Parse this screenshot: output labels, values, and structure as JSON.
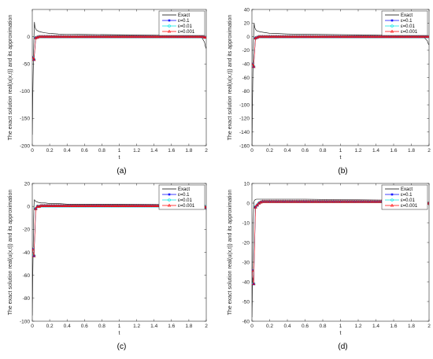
{
  "chart_data": [
    {
      "type": "line",
      "caption": "(a)",
      "xlabel": "t",
      "ylabel": "The exact solution real(u(x,t)) and its approximation",
      "xlim": [
        0,
        2
      ],
      "ylim": [
        -200,
        50
      ],
      "xticks": [
        0,
        0.2,
        0.4,
        0.6,
        0.8,
        1,
        1.2,
        1.4,
        1.6,
        1.8,
        2
      ],
      "xtick_labels": [
        "0",
        "0.2",
        "0.4",
        "0.6",
        "0.8",
        "1",
        "1.2",
        "1.4",
        "1.6",
        "1.8",
        "2"
      ],
      "yticks": [
        -200,
        -150,
        -100,
        -50,
        0
      ],
      "ytick_labels": [
        "-200",
        "-150",
        "-100",
        "-50",
        "0"
      ],
      "legend_position": "top-right",
      "exact_curve": {
        "label": "Exact",
        "color": "#000000",
        "x": [
          0,
          0.005,
          0.01,
          0.015,
          0.02,
          0.025,
          0.03,
          0.04,
          0.05,
          0.07,
          0.1,
          0.15,
          0.2,
          0.3,
          0.4,
          0.6,
          1.0,
          1.4,
          1.6,
          1.8,
          1.9,
          1.95,
          1.98,
          1.99,
          2.0
        ],
        "y": [
          -180,
          -120,
          -70,
          -25,
          5,
          27,
          18,
          14,
          12,
          10,
          8.5,
          7,
          6,
          5,
          4.5,
          4,
          3.5,
          3,
          2.5,
          2,
          1,
          -2,
          -10,
          -18,
          -22
        ]
      },
      "approx_series": [
        {
          "label": "ε=0.1",
          "color": "#0000ff",
          "marker": "star"
        },
        {
          "label": "ε=0.01",
          "color": "#00e5e5",
          "marker": "circle"
        },
        {
          "label": "ε=0.001",
          "color": "#ff0000",
          "marker": "triangle"
        }
      ],
      "approx_x": [
        0,
        0.02,
        0.04,
        0.06,
        0.08,
        0.1,
        0.12,
        0.14,
        0.16,
        0.18,
        0.2,
        0.22,
        0.24,
        0.26,
        0.28,
        0.3,
        0.32,
        0.34,
        0.36,
        0.38,
        0.4,
        0.42,
        0.44,
        0.46,
        0.48,
        0.5,
        0.52,
        0.54,
        0.56,
        0.58,
        0.6,
        0.62,
        0.64,
        0.66,
        0.68,
        0.7,
        0.72,
        0.74,
        0.76,
        0.78,
        0.8,
        0.82,
        0.84,
        0.86,
        0.88,
        0.9,
        0.92,
        0.94,
        0.96,
        0.98,
        1.0,
        1.02,
        1.04,
        1.06,
        1.08,
        1.1,
        1.12,
        1.14,
        1.16,
        1.18,
        1.2,
        1.22,
        1.24,
        1.26,
        1.28,
        1.3,
        1.32,
        1.34,
        1.36,
        1.38,
        1.4,
        1.42,
        1.44,
        1.46,
        1.48,
        1.5,
        1.52,
        1.54,
        1.56,
        1.58,
        1.6,
        1.62,
        1.64,
        1.66,
        1.68,
        1.7,
        1.72,
        1.74,
        1.76,
        1.78,
        1.8,
        1.82,
        1.84,
        1.86,
        1.88,
        1.9,
        1.92,
        1.94,
        1.96,
        1.98,
        2.0
      ],
      "approx_y": [
        -38,
        -42,
        -2,
        -1,
        0,
        0,
        0,
        0,
        0,
        0,
        0,
        0,
        0,
        0,
        0,
        0,
        0,
        0,
        0,
        0,
        0,
        0,
        0,
        0,
        0,
        0,
        0,
        0,
        0,
        0,
        0,
        0,
        0,
        0,
        0,
        0,
        0,
        0,
        0,
        0,
        0,
        0,
        0,
        0,
        0,
        0,
        0,
        0,
        0,
        0,
        0,
        0,
        0,
        0,
        0,
        0,
        0,
        0,
        0,
        0,
        0,
        0,
        0,
        0,
        0,
        0,
        0,
        0,
        0,
        0,
        0,
        0,
        0,
        0,
        0,
        0,
        0,
        0,
        0,
        0,
        0,
        0,
        0,
        0,
        0,
        0,
        0,
        0,
        0,
        0,
        0,
        0,
        0,
        0,
        0,
        0,
        0,
        0,
        0,
        -1,
        -1
      ]
    },
    {
      "type": "line",
      "caption": "(b)",
      "xlabel": "t",
      "ylabel": "The exact solution real(u(x,t)) and its approximation",
      "xlim": [
        0,
        2
      ],
      "ylim": [
        -160,
        40
      ],
      "xticks": [
        0,
        0.2,
        0.4,
        0.6,
        0.8,
        1,
        1.2,
        1.4,
        1.6,
        1.8,
        2
      ],
      "xtick_labels": [
        "0",
        "0.2",
        "0.4",
        "0.6",
        "0.8",
        "1",
        "1.2",
        "1.4",
        "1.6",
        "1.8",
        "2"
      ],
      "yticks": [
        -160,
        -140,
        -120,
        -100,
        -80,
        -60,
        -40,
        -20,
        0,
        20,
        40
      ],
      "ytick_labels": [
        "-160",
        "-140",
        "-120",
        "-100",
        "-80",
        "-60",
        "-40",
        "-20",
        "0",
        "20",
        "40"
      ],
      "legend_position": "top-right",
      "exact_curve": {
        "label": "Exact",
        "color": "#000000",
        "x": [
          0,
          0.005,
          0.01,
          0.015,
          0.02,
          0.025,
          0.03,
          0.04,
          0.05,
          0.07,
          0.1,
          0.15,
          0.2,
          0.3,
          0.4,
          0.6,
          1.0,
          1.4,
          1.6,
          1.8,
          1.9,
          1.95,
          1.98,
          1.99,
          2.0
        ],
        "y": [
          -160,
          -110,
          -60,
          -20,
          5,
          20,
          14,
          11,
          9,
          8,
          7,
          6,
          5,
          4.5,
          4,
          3.5,
          3,
          2.5,
          2,
          1.5,
          0.5,
          -2,
          -6,
          -10,
          -12
        ]
      },
      "approx_series": [
        {
          "label": "ε=0.1",
          "color": "#0000ff",
          "marker": "star"
        },
        {
          "label": "ε=0.01",
          "color": "#00e5e5",
          "marker": "circle"
        },
        {
          "label": "ε=0.001",
          "color": "#ff0000",
          "marker": "triangle"
        }
      ],
      "approx_x": [
        0,
        0.02,
        0.04,
        0.06,
        0.08,
        0.1,
        0.12,
        0.14,
        0.16,
        0.18,
        0.2,
        0.22,
        0.24,
        0.26,
        0.28,
        0.3,
        0.32,
        0.34,
        0.36,
        0.38,
        0.4,
        0.42,
        0.44,
        0.46,
        0.48,
        0.5,
        0.52,
        0.54,
        0.56,
        0.58,
        0.6,
        0.62,
        0.64,
        0.66,
        0.68,
        0.7,
        0.72,
        0.74,
        0.76,
        0.78,
        0.8,
        0.82,
        0.84,
        0.86,
        0.88,
        0.9,
        0.92,
        0.94,
        0.96,
        0.98,
        1.0,
        1.02,
        1.04,
        1.06,
        1.08,
        1.1,
        1.12,
        1.14,
        1.16,
        1.18,
        1.2,
        1.22,
        1.24,
        1.26,
        1.28,
        1.3,
        1.32,
        1.34,
        1.36,
        1.38,
        1.4,
        1.42,
        1.44,
        1.46,
        1.48,
        1.5,
        1.52,
        1.54,
        1.56,
        1.58,
        1.6,
        1.62,
        1.64,
        1.66,
        1.68,
        1.7,
        1.72,
        1.74,
        1.76,
        1.78,
        1.8,
        1.82,
        1.84,
        1.86,
        1.88,
        1.9,
        1.92,
        1.94,
        1.96,
        1.98,
        2.0
      ],
      "approx_y": [
        -40,
        -44,
        -2,
        -1,
        0,
        0,
        0,
        0,
        0,
        0,
        0,
        0,
        0,
        0,
        0,
        0,
        0,
        0,
        0,
        0,
        0,
        0,
        0,
        0,
        0,
        0,
        0,
        0,
        0,
        0,
        0,
        0,
        0,
        0,
        0,
        0,
        0,
        0,
        0,
        0,
        0,
        0,
        0,
        0,
        0,
        0,
        0,
        0,
        0,
        0,
        0,
        0,
        0,
        0,
        0,
        0,
        0,
        0,
        0,
        0,
        0,
        0,
        0,
        0,
        0,
        0,
        0,
        0,
        0,
        0,
        0,
        0,
        0,
        0,
        0,
        0,
        0,
        0,
        0,
        0,
        0,
        0,
        0,
        0,
        0,
        0,
        0,
        0,
        0,
        0,
        0,
        0,
        0,
        0,
        0,
        0,
        0,
        0,
        0,
        0,
        0
      ]
    },
    {
      "type": "line",
      "caption": "(c)",
      "xlabel": "t",
      "ylabel": "The exact solution real(u(x,t)) and its approximation",
      "xlim": [
        0,
        2
      ],
      "ylim": [
        -100,
        20
      ],
      "xticks": [
        0,
        0.2,
        0.4,
        0.6,
        0.8,
        1,
        1.2,
        1.4,
        1.6,
        1.8,
        2
      ],
      "xtick_labels": [
        "0",
        "0.2",
        "0.4",
        "0.6",
        "0.8",
        "1",
        "1.2",
        "1.4",
        "1.6",
        "1.8",
        "2"
      ],
      "yticks": [
        -100,
        -80,
        -60,
        -40,
        -20,
        0,
        20
      ],
      "ytick_labels": [
        "-100",
        "-80",
        "-60",
        "-40",
        "-20",
        "0",
        "20"
      ],
      "legend_position": "top-right",
      "exact_curve": {
        "label": "Exact",
        "color": "#000000",
        "x": [
          0,
          0.005,
          0.01,
          0.015,
          0.02,
          0.025,
          0.03,
          0.04,
          0.05,
          0.07,
          0.1,
          0.15,
          0.2,
          0.3,
          0.4,
          0.6,
          1.0,
          1.4,
          1.6,
          1.8,
          1.9,
          1.95,
          1.98,
          1.99,
          2.0
        ],
        "y": [
          -95,
          -65,
          -38,
          -12,
          2,
          6,
          5,
          4.5,
          4,
          3.5,
          3,
          3,
          2.5,
          2.5,
          2,
          2,
          2,
          1.8,
          1.6,
          1.5,
          1,
          0,
          -1,
          -2,
          -3
        ]
      },
      "approx_series": [
        {
          "label": "ε=0.1",
          "color": "#0000ff",
          "marker": "star"
        },
        {
          "label": "ε=0.01",
          "color": "#00e5e5",
          "marker": "circle"
        },
        {
          "label": "ε=0.001",
          "color": "#ff0000",
          "marker": "triangle"
        }
      ],
      "approx_x": [
        0,
        0.02,
        0.04,
        0.06,
        0.08,
        0.1,
        0.12,
        0.14,
        0.16,
        0.18,
        0.2,
        0.22,
        0.24,
        0.26,
        0.28,
        0.3,
        0.32,
        0.34,
        0.36,
        0.38,
        0.4,
        0.42,
        0.44,
        0.46,
        0.48,
        0.5,
        0.52,
        0.54,
        0.56,
        0.58,
        0.6,
        0.62,
        0.64,
        0.66,
        0.68,
        0.7,
        0.72,
        0.74,
        0.76,
        0.78,
        0.8,
        0.82,
        0.84,
        0.86,
        0.88,
        0.9,
        0.92,
        0.94,
        0.96,
        0.98,
        1.0,
        1.02,
        1.04,
        1.06,
        1.08,
        1.1,
        1.12,
        1.14,
        1.16,
        1.18,
        1.2,
        1.22,
        1.24,
        1.26,
        1.28,
        1.3,
        1.32,
        1.34,
        1.36,
        1.38,
        1.4,
        1.42,
        1.44,
        1.46,
        1.48,
        1.5,
        1.52,
        1.54,
        1.56,
        1.58,
        1.6,
        1.62,
        1.64,
        1.66,
        1.68,
        1.7,
        1.72,
        1.74,
        1.76,
        1.78,
        1.8,
        1.82,
        1.84,
        1.86,
        1.88,
        1.9,
        1.92,
        1.94,
        1.96,
        1.98,
        2.0
      ],
      "approx_y": [
        -37,
        -43,
        -2,
        0,
        0,
        0.5,
        0.5,
        0.5,
        0.5,
        0.5,
        0.5,
        0.5,
        0.5,
        0.5,
        0.5,
        0.5,
        0.5,
        0.5,
        0.5,
        0.5,
        0.5,
        0.5,
        0.5,
        0.5,
        0.5,
        0.5,
        0.5,
        0.5,
        0.5,
        0.5,
        0.5,
        0.5,
        0.5,
        0.5,
        0.5,
        0.5,
        0.5,
        0.5,
        0.5,
        0.5,
        0.5,
        0.5,
        0.5,
        0.5,
        0.5,
        0.5,
        0.5,
        0.5,
        0.5,
        0.5,
        0.5,
        0.5,
        0.5,
        0.5,
        0.5,
        0.5,
        0.5,
        0.5,
        0.5,
        0.5,
        0.5,
        0.5,
        0.5,
        0.5,
        0.5,
        0.5,
        0.5,
        0.5,
        0.5,
        0.5,
        0.5,
        0.5,
        0.5,
        0.5,
        0.5,
        0.5,
        0.5,
        0.5,
        0.5,
        0.5,
        0.5,
        0.5,
        0.5,
        0.5,
        0.5,
        0.5,
        0.5,
        0.5,
        0.5,
        0.5,
        0.5,
        0.5,
        0.5,
        0.5,
        0.5,
        0.5,
        0.5,
        0.5,
        0.5,
        0,
        -1
      ]
    },
    {
      "type": "line",
      "caption": "(d)",
      "xlabel": "t",
      "ylabel": "The exact solution real(u(x,t)) and its approximation",
      "xlim": [
        0,
        2
      ],
      "ylim": [
        -60,
        10
      ],
      "xticks": [
        0,
        0.2,
        0.4,
        0.6,
        0.8,
        1,
        1.2,
        1.4,
        1.6,
        1.8,
        2
      ],
      "xtick_labels": [
        "0",
        "0.2",
        "0.4",
        "0.6",
        "0.8",
        "1",
        "1.2",
        "1.4",
        "1.6",
        "1.8",
        "2"
      ],
      "yticks": [
        -60,
        -50,
        -40,
        -30,
        -20,
        -10,
        0,
        10
      ],
      "ytick_labels": [
        "-60",
        "-50",
        "-40",
        "-30",
        "-20",
        "-10",
        "0",
        "10"
      ],
      "legend_position": "top-right",
      "exact_curve": {
        "label": "Exact",
        "color": "#000000",
        "x": [
          0,
          0.005,
          0.01,
          0.015,
          0.02,
          0.025,
          0.03,
          0.04,
          0.05,
          0.07,
          0.1,
          0.15,
          0.2,
          0.3,
          0.4,
          0.6,
          1.0,
          1.4,
          1.6,
          1.8,
          1.9,
          1.95,
          1.98,
          1.99,
          2.0
        ],
        "y": [
          -58,
          -45,
          -28,
          -10,
          -2,
          1,
          1.5,
          1.8,
          2,
          2,
          2,
          2,
          2,
          2,
          2,
          2,
          1.8,
          1.6,
          1.5,
          1.3,
          1,
          0.5,
          0,
          -0.5,
          -1
        ]
      },
      "approx_series": [
        {
          "label": "ε=0.1",
          "color": "#0000ff",
          "marker": "star"
        },
        {
          "label": "ε=0.01",
          "color": "#00e5e5",
          "marker": "circle"
        },
        {
          "label": "ε=0.001",
          "color": "#ff0000",
          "marker": "triangle"
        }
      ],
      "approx_x": [
        0,
        0.02,
        0.04,
        0.06,
        0.08,
        0.1,
        0.12,
        0.14,
        0.16,
        0.18,
        0.2,
        0.22,
        0.24,
        0.26,
        0.28,
        0.3,
        0.32,
        0.34,
        0.36,
        0.38,
        0.4,
        0.42,
        0.44,
        0.46,
        0.48,
        0.5,
        0.52,
        0.54,
        0.56,
        0.58,
        0.6,
        0.62,
        0.64,
        0.66,
        0.68,
        0.7,
        0.72,
        0.74,
        0.76,
        0.78,
        0.8,
        0.82,
        0.84,
        0.86,
        0.88,
        0.9,
        0.92,
        0.94,
        0.96,
        0.98,
        1.0,
        1.02,
        1.04,
        1.06,
        1.08,
        1.1,
        1.12,
        1.14,
        1.16,
        1.18,
        1.2,
        1.22,
        1.24,
        1.26,
        1.28,
        1.3,
        1.32,
        1.34,
        1.36,
        1.38,
        1.4,
        1.42,
        1.44,
        1.46,
        1.48,
        1.5,
        1.52,
        1.54,
        1.56,
        1.58,
        1.6,
        1.62,
        1.64,
        1.66,
        1.68,
        1.7,
        1.72,
        1.74,
        1.76,
        1.78,
        1.8,
        1.82,
        1.84,
        1.86,
        1.88,
        1.9,
        1.92,
        1.94,
        1.96,
        1.98,
        2.0
      ],
      "approx_y": [
        -34,
        -41,
        -2,
        -1,
        0,
        0.5,
        0.8,
        0.8,
        0.8,
        0.8,
        0.8,
        0.8,
        0.8,
        0.8,
        0.8,
        0.8,
        0.8,
        0.8,
        0.8,
        0.8,
        0.8,
        0.8,
        0.8,
        0.8,
        0.8,
        0.8,
        0.8,
        0.8,
        0.8,
        0.8,
        0.8,
        0.8,
        0.8,
        0.8,
        0.8,
        0.8,
        0.8,
        0.8,
        0.8,
        0.8,
        0.8,
        0.8,
        0.8,
        0.8,
        0.8,
        0.8,
        0.8,
        0.8,
        0.8,
        0.8,
        0.8,
        0.8,
        0.8,
        0.8,
        0.8,
        0.8,
        0.8,
        0.8,
        0.8,
        0.8,
        0.8,
        0.8,
        0.8,
        0.8,
        0.8,
        0.8,
        0.8,
        0.8,
        0.8,
        0.8,
        0.8,
        0.8,
        0.8,
        0.8,
        0.8,
        0.8,
        0.8,
        0.8,
        0.8,
        0.8,
        0.8,
        0.8,
        0.8,
        0.8,
        0.8,
        0.8,
        0.8,
        0.8,
        0.8,
        0.8,
        0.8,
        0.8,
        0.8,
        0.8,
        0.8,
        0.8,
        0.8,
        0.8,
        0.8,
        0,
        0
      ]
    }
  ]
}
